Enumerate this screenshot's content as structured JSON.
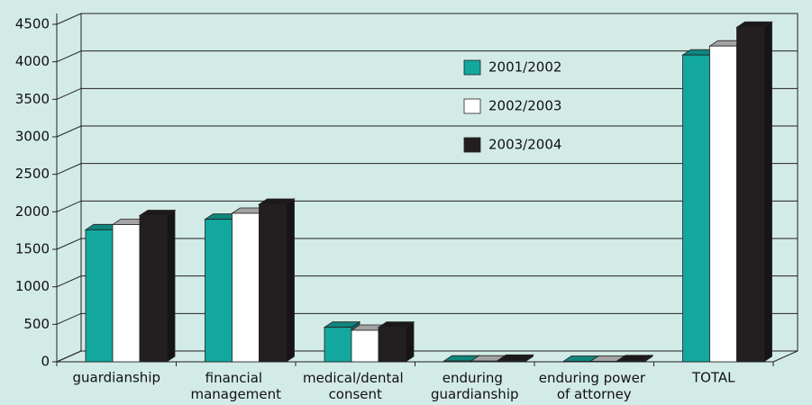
{
  "chart_data": {
    "type": "bar",
    "categories": [
      "guardianship",
      "financial management",
      "medical/dental consent",
      "enduring guardianship",
      "enduring power of attorney",
      "TOTAL"
    ],
    "series": [
      {
        "name": "2001/2002",
        "color": "#13a89e",
        "values": [
          1760,
          1900,
          460,
          10,
          5,
          4090
        ]
      },
      {
        "name": "2002/2003",
        "color": "#ffffff",
        "values": [
          1830,
          1980,
          420,
          10,
          5,
          4210
        ]
      },
      {
        "name": "2003/2004",
        "color": "#231f20",
        "values": [
          1950,
          2100,
          460,
          20,
          15,
          4460
        ]
      }
    ],
    "ylim": [
      0,
      4500
    ],
    "yticks": [
      0,
      500,
      1000,
      1500,
      2000,
      2500,
      3000,
      3500,
      4000,
      4500
    ],
    "grid": true,
    "legend": "top-right"
  }
}
